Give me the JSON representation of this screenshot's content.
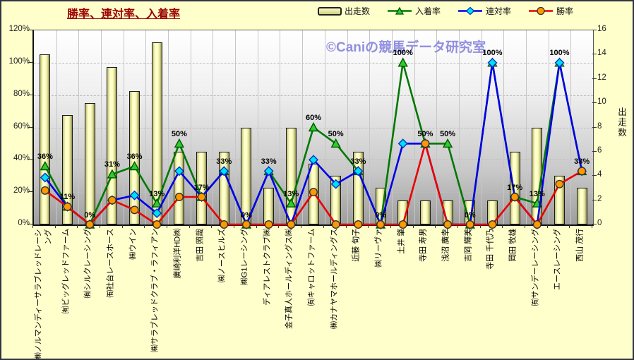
{
  "frame": {
    "title": "勝率、連対率、入着率",
    "watermark": "©Caniの競馬データ研究室"
  },
  "legend": [
    {
      "label": "出走数",
      "type": "bar"
    },
    {
      "label": "入着率",
      "type": "triangle"
    },
    {
      "label": "連対率",
      "type": "diamond"
    },
    {
      "label": "勝率",
      "type": "circle"
    }
  ],
  "axes": {
    "left_ticks": [
      "0%",
      "20%",
      "40%",
      "60%",
      "80%",
      "100%",
      "120%"
    ],
    "right_ticks": [
      "0",
      "2",
      "4",
      "6",
      "8",
      "10",
      "12",
      "14",
      "16"
    ],
    "right_label": "出走数"
  },
  "colors": {
    "background": "#FFFFCC",
    "title": "#990000",
    "watermark": "#918FE0",
    "bar_fill": "#FFFFCA",
    "bar_border": "#1A1A1A",
    "line_place": "#007800",
    "marker_place_fill": "#2ECC2E",
    "marker_place_stroke": "#005500",
    "line_quinella": "#0000E8",
    "marker_quinella_fill": "#00E0F0",
    "marker_quinella_stroke": "#0033CC",
    "line_win": "#E80000",
    "marker_win_fill": "#FF9900",
    "marker_win_stroke": "#333333"
  },
  "chart_data": {
    "type": "bar",
    "subtype": "bar-line-combo",
    "title": "勝率、連対率、入着率",
    "ylim_left": [
      0,
      120
    ],
    "ylim_right": [
      0,
      16
    ],
    "grid": true,
    "legend_position": "top",
    "categories": [
      "㈱ノルマンディーサラブレッドレーシング",
      "㈲ビッグレッドファーム",
      "㈲シルクレーシング",
      "㈲社台レースホース",
      "㈱ウイン",
      "㈱サラブレッドクラブ・ラフィアン",
      "廣崎利洋HD㈱",
      "吉田 照哉",
      "㈱ノースヒルズ",
      "㈱G1レーシング",
      "ディアレストクラブ㈱",
      "金子真人ホールディングス㈱",
      "㈲キャロットファーム",
      "㈱カナヤマホールディングス",
      "近藤 旬子",
      "㈱リーヴァ",
      "土井 肇",
      "寺田 寿男",
      "浅沼 廣幸",
      "吉岡 輝美",
      "寺田 千代乃",
      "岡田 牧雄",
      "㈲サンデーレーシング",
      "エースレーシング",
      "西山 茂行"
    ],
    "series": [
      {
        "name": "出走数",
        "kind": "bar",
        "axis": "right",
        "values": [
          14,
          9,
          10,
          13,
          11,
          15,
          6,
          6,
          6,
          8,
          3,
          8,
          5,
          4,
          6,
          3,
          2,
          2,
          2,
          2,
          2,
          6,
          8,
          4,
          3
        ]
      },
      {
        "name": "入着率",
        "kind": "line",
        "axis": "left",
        "unit": "%",
        "marker": "triangle",
        "values": [
          36,
          11,
          0,
          31,
          36,
          13,
          50,
          17,
          33,
          0,
          33,
          13,
          60,
          50,
          33,
          0,
          100,
          50,
          50,
          0,
          100,
          17,
          13,
          100,
          33
        ]
      },
      {
        "name": "連対率",
        "kind": "line",
        "axis": "left",
        "unit": "%",
        "marker": "diamond",
        "values": [
          29,
          11,
          0,
          15,
          18,
          7,
          33,
          17,
          33,
          0,
          33,
          0,
          40,
          25,
          33,
          0,
          50,
          50,
          0,
          0,
          100,
          17,
          0,
          100,
          33
        ]
      },
      {
        "name": "勝率",
        "kind": "line",
        "axis": "left",
        "unit": "%",
        "marker": "circle",
        "values": [
          21,
          11,
          0,
          15,
          9,
          0,
          17,
          17,
          0,
          0,
          0,
          0,
          20,
          0,
          0,
          0,
          0,
          50,
          0,
          0,
          0,
          17,
          0,
          25,
          33
        ]
      }
    ],
    "data_labels": [
      "36%",
      "11%",
      "0%",
      "31%",
      "36%",
      "13%",
      "50%",
      "17%",
      "33%",
      "0%",
      "33%",
      "13%",
      "60%",
      "50%",
      "33%",
      "0%",
      "100%",
      "50%",
      "50%",
      "0%",
      "100%",
      "17%",
      "13%",
      "100%",
      "33%"
    ]
  }
}
